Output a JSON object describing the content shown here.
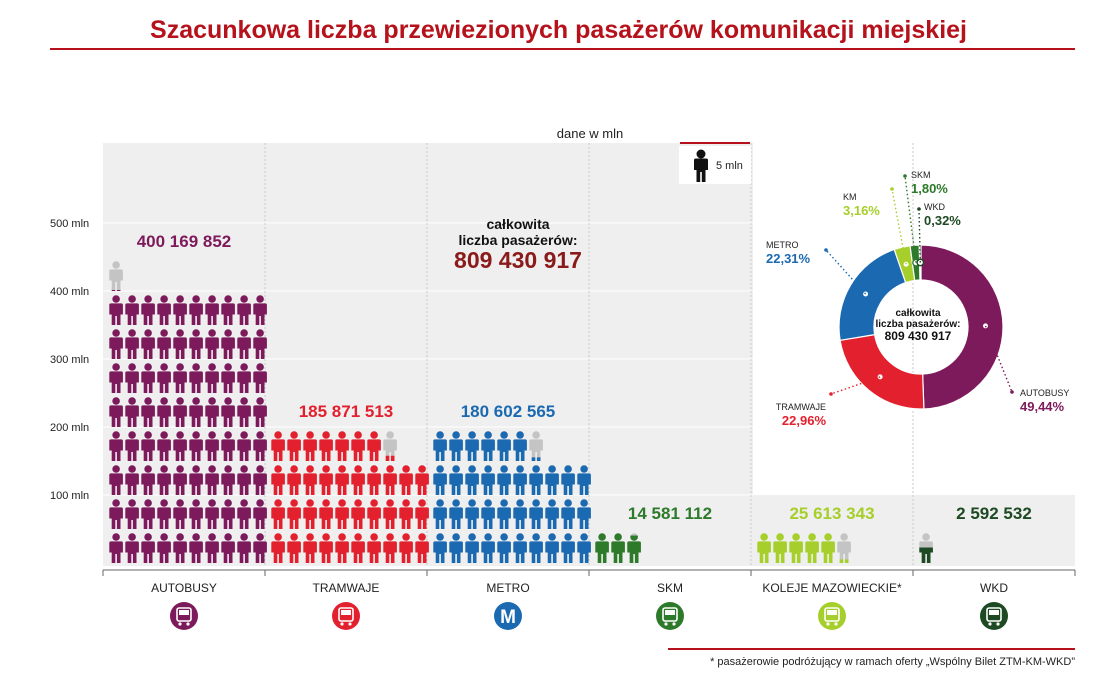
{
  "title": "Szacunkowa liczba przewiezionych pasażerów komunikacji miejskiej",
  "unit_note": "dane w mln",
  "legend": {
    "label": "5 mln",
    "icon": "person-icon"
  },
  "footnote": "* pasażerowie podróżujący w ramach oferty „Wspólny Bilet ZTM-KM-WKD”",
  "total": {
    "label_line1": "całkowita",
    "label_line2": "liczba pasażerów:",
    "value": "809 430 917"
  },
  "colors": {
    "accent": "#b5121b",
    "autobusy": "#7d1a5b",
    "tramwaje": "#e3202d",
    "metro": "#1b69b1",
    "skm": "#2d7a2b",
    "km": "#a6cf2b",
    "wkd": "#1d4a22",
    "partial": "#c4c4c4"
  },
  "chart_data": {
    "type": "bar",
    "style": "pictograph",
    "unit_per_icon": 5000000,
    "categories": [
      "AUTOBUSY",
      "TRAMWAJE",
      "METRO",
      "SKM",
      "KOLEJE MAZOWIECKIE*",
      "WKD"
    ],
    "values": [
      400169852,
      185871513,
      180602565,
      14581112,
      25613343,
      2592532
    ],
    "value_labels": [
      "400 169 852",
      "185 871 513",
      "180 602 565",
      "14 581 112",
      "25 613 343",
      "2 592 532"
    ],
    "ytick_labels": [
      "500 mln",
      "400 mln",
      "300 mln",
      "200 mln",
      "100 mln"
    ],
    "ytick_values": [
      500,
      400,
      300,
      200,
      100
    ],
    "category_icons": [
      "bus-icon",
      "tram-icon",
      "metro-icon",
      "skm-train-icon",
      "km-train-icon",
      "wkd-train-icon"
    ],
    "category_colors": [
      "#7d1a5b",
      "#e3202d",
      "#1b69b1",
      "#2d7a2b",
      "#a6cf2b",
      "#1d4a22"
    ]
  },
  "donut": {
    "type": "pie",
    "center_line1": "całkowita",
    "center_line2": "liczba pasażerów:",
    "center_value": "809 430 917",
    "slices": [
      {
        "name": "AUTOBUSY",
        "percent": 49.44,
        "label": "49,44%",
        "color": "#7d1a5b"
      },
      {
        "name": "TRAMWAJE",
        "percent": 22.96,
        "label": "22,96%",
        "color": "#e3202d"
      },
      {
        "name": "METRO",
        "percent": 22.31,
        "label": "22,31%",
        "color": "#1b69b1"
      },
      {
        "name": "KM",
        "percent": 3.16,
        "label": "3,16%",
        "color": "#a6cf2b"
      },
      {
        "name": "SKM",
        "percent": 1.8,
        "label": "1,80%",
        "color": "#2d7a2b"
      },
      {
        "name": "WKD",
        "percent": 0.32,
        "label": "0,32%",
        "color": "#1d4a22"
      }
    ]
  }
}
